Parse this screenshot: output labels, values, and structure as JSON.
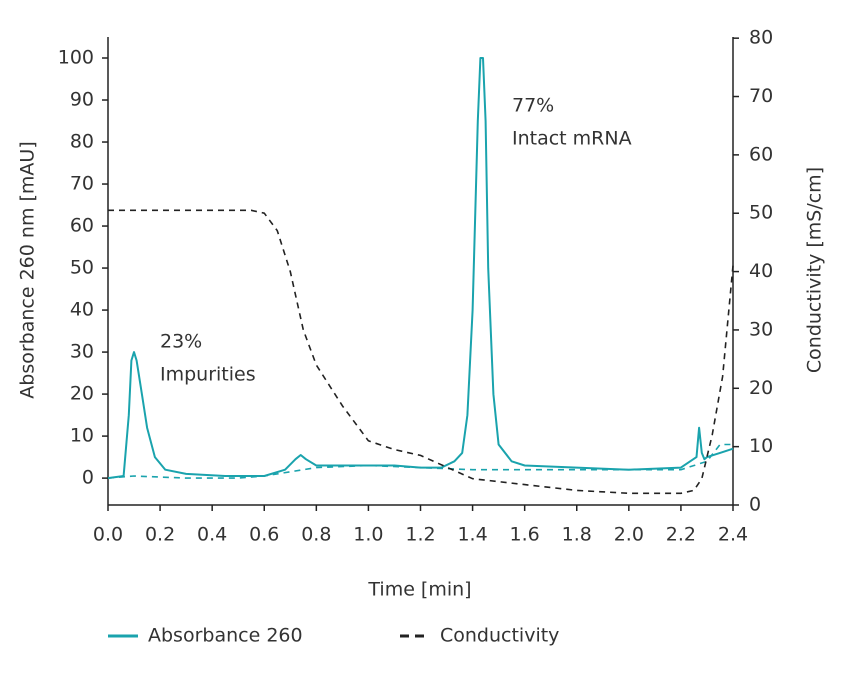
{
  "chart_data": {
    "type": "line",
    "xlabel": "Time [min]",
    "ylabel": "Absorbance 260 nm [mAU]",
    "y2label": "Conductivity [mS/cm]",
    "annotations": [
      "23%",
      "Impurities",
      "77%",
      "Intact mRNA"
    ],
    "xlim": [
      0,
      2.4
    ],
    "xticks": [
      {
        "value": 0,
        "label": "0.0"
      },
      {
        "value": 0.2,
        "label": "0.2"
      },
      {
        "value": 0.4,
        "label": "0.4"
      },
      {
        "value": 0.6,
        "label": "0.6"
      },
      {
        "value": 0.8,
        "label": "0.8"
      },
      {
        "value": 1.0,
        "label": "1.0"
      },
      {
        "value": 1.2,
        "label": "1.2"
      },
      {
        "value": 1.4,
        "label": "1.4"
      },
      {
        "value": 1.6,
        "label": "1.6"
      },
      {
        "value": 1.8,
        "label": "1.8"
      },
      {
        "value": 2.0,
        "label": "2.0"
      },
      {
        "value": 2.2,
        "label": "2.2"
      },
      {
        "value": 2.4,
        "label": "2.4"
      }
    ],
    "ylim": [
      -6.4,
      105
    ],
    "yticks": [
      0,
      10,
      20,
      30,
      40,
      50,
      60,
      70,
      80,
      90,
      100
    ],
    "y2lim": [
      0,
      80.2
    ],
    "y2ticks": [
      0,
      10,
      20,
      30,
      40,
      50,
      60,
      70,
      80
    ],
    "series": [
      {
        "name": "Absorbance 260",
        "color": "#1aa3ad",
        "dash": false,
        "x": [
          0,
          0.06,
          0.08,
          0.09,
          0.1,
          0.11,
          0.13,
          0.15,
          0.18,
          0.22,
          0.3,
          0.45,
          0.6,
          0.68,
          0.72,
          0.74,
          0.76,
          0.8,
          0.9,
          1.0,
          1.1,
          1.2,
          1.28,
          1.33,
          1.36,
          1.38,
          1.4,
          1.42,
          1.43,
          1.44,
          1.45,
          1.46,
          1.48,
          1.5,
          1.55,
          1.6,
          1.8,
          2.0,
          2.2,
          2.26,
          2.27,
          2.28,
          2.29,
          2.3,
          2.35,
          2.4
        ],
        "values": [
          0,
          0.5,
          15,
          28,
          30,
          28,
          20,
          12,
          5,
          2,
          1,
          0.5,
          0.5,
          2,
          4.5,
          5.5,
          4.5,
          3,
          3,
          3,
          3,
          2.5,
          2.5,
          4,
          6,
          15,
          40,
          85,
          100,
          100,
          85,
          50,
          20,
          8,
          4,
          3,
          2.5,
          2,
          2.5,
          5,
          12,
          6,
          4.5,
          5,
          6,
          7
        ]
      },
      {
        "color": "#1aa3ad",
        "dash": true,
        "x": [
          0,
          0.1,
          0.3,
          0.5,
          0.6,
          0.8,
          1.0,
          1.2,
          1.4,
          1.8,
          2.2,
          2.3,
          2.35,
          2.4
        ],
        "values": [
          0,
          0.5,
          0,
          0,
          0.5,
          2.5,
          3,
          2.5,
          2,
          2,
          2,
          4,
          8,
          8
        ]
      },
      {
        "name": "Conductivity",
        "color": "#222222",
        "dash": true,
        "axis": "y2",
        "x": [
          0,
          0.2,
          0.4,
          0.55,
          0.6,
          0.65,
          0.7,
          0.75,
          0.8,
          0.9,
          1.0,
          1.1,
          1.2,
          1.3,
          1.4,
          1.6,
          1.8,
          2.0,
          2.2,
          2.25,
          2.28,
          2.32,
          2.36,
          2.4
        ],
        "values": [
          50.5,
          50.5,
          50.5,
          50.5,
          50,
          47,
          40,
          30,
          24,
          17,
          11,
          9.5,
          8.5,
          6.5,
          4.5,
          3.5,
          2.5,
          2,
          2,
          2.5,
          4.5,
          12,
          22,
          41
        ]
      }
    ]
  }
}
